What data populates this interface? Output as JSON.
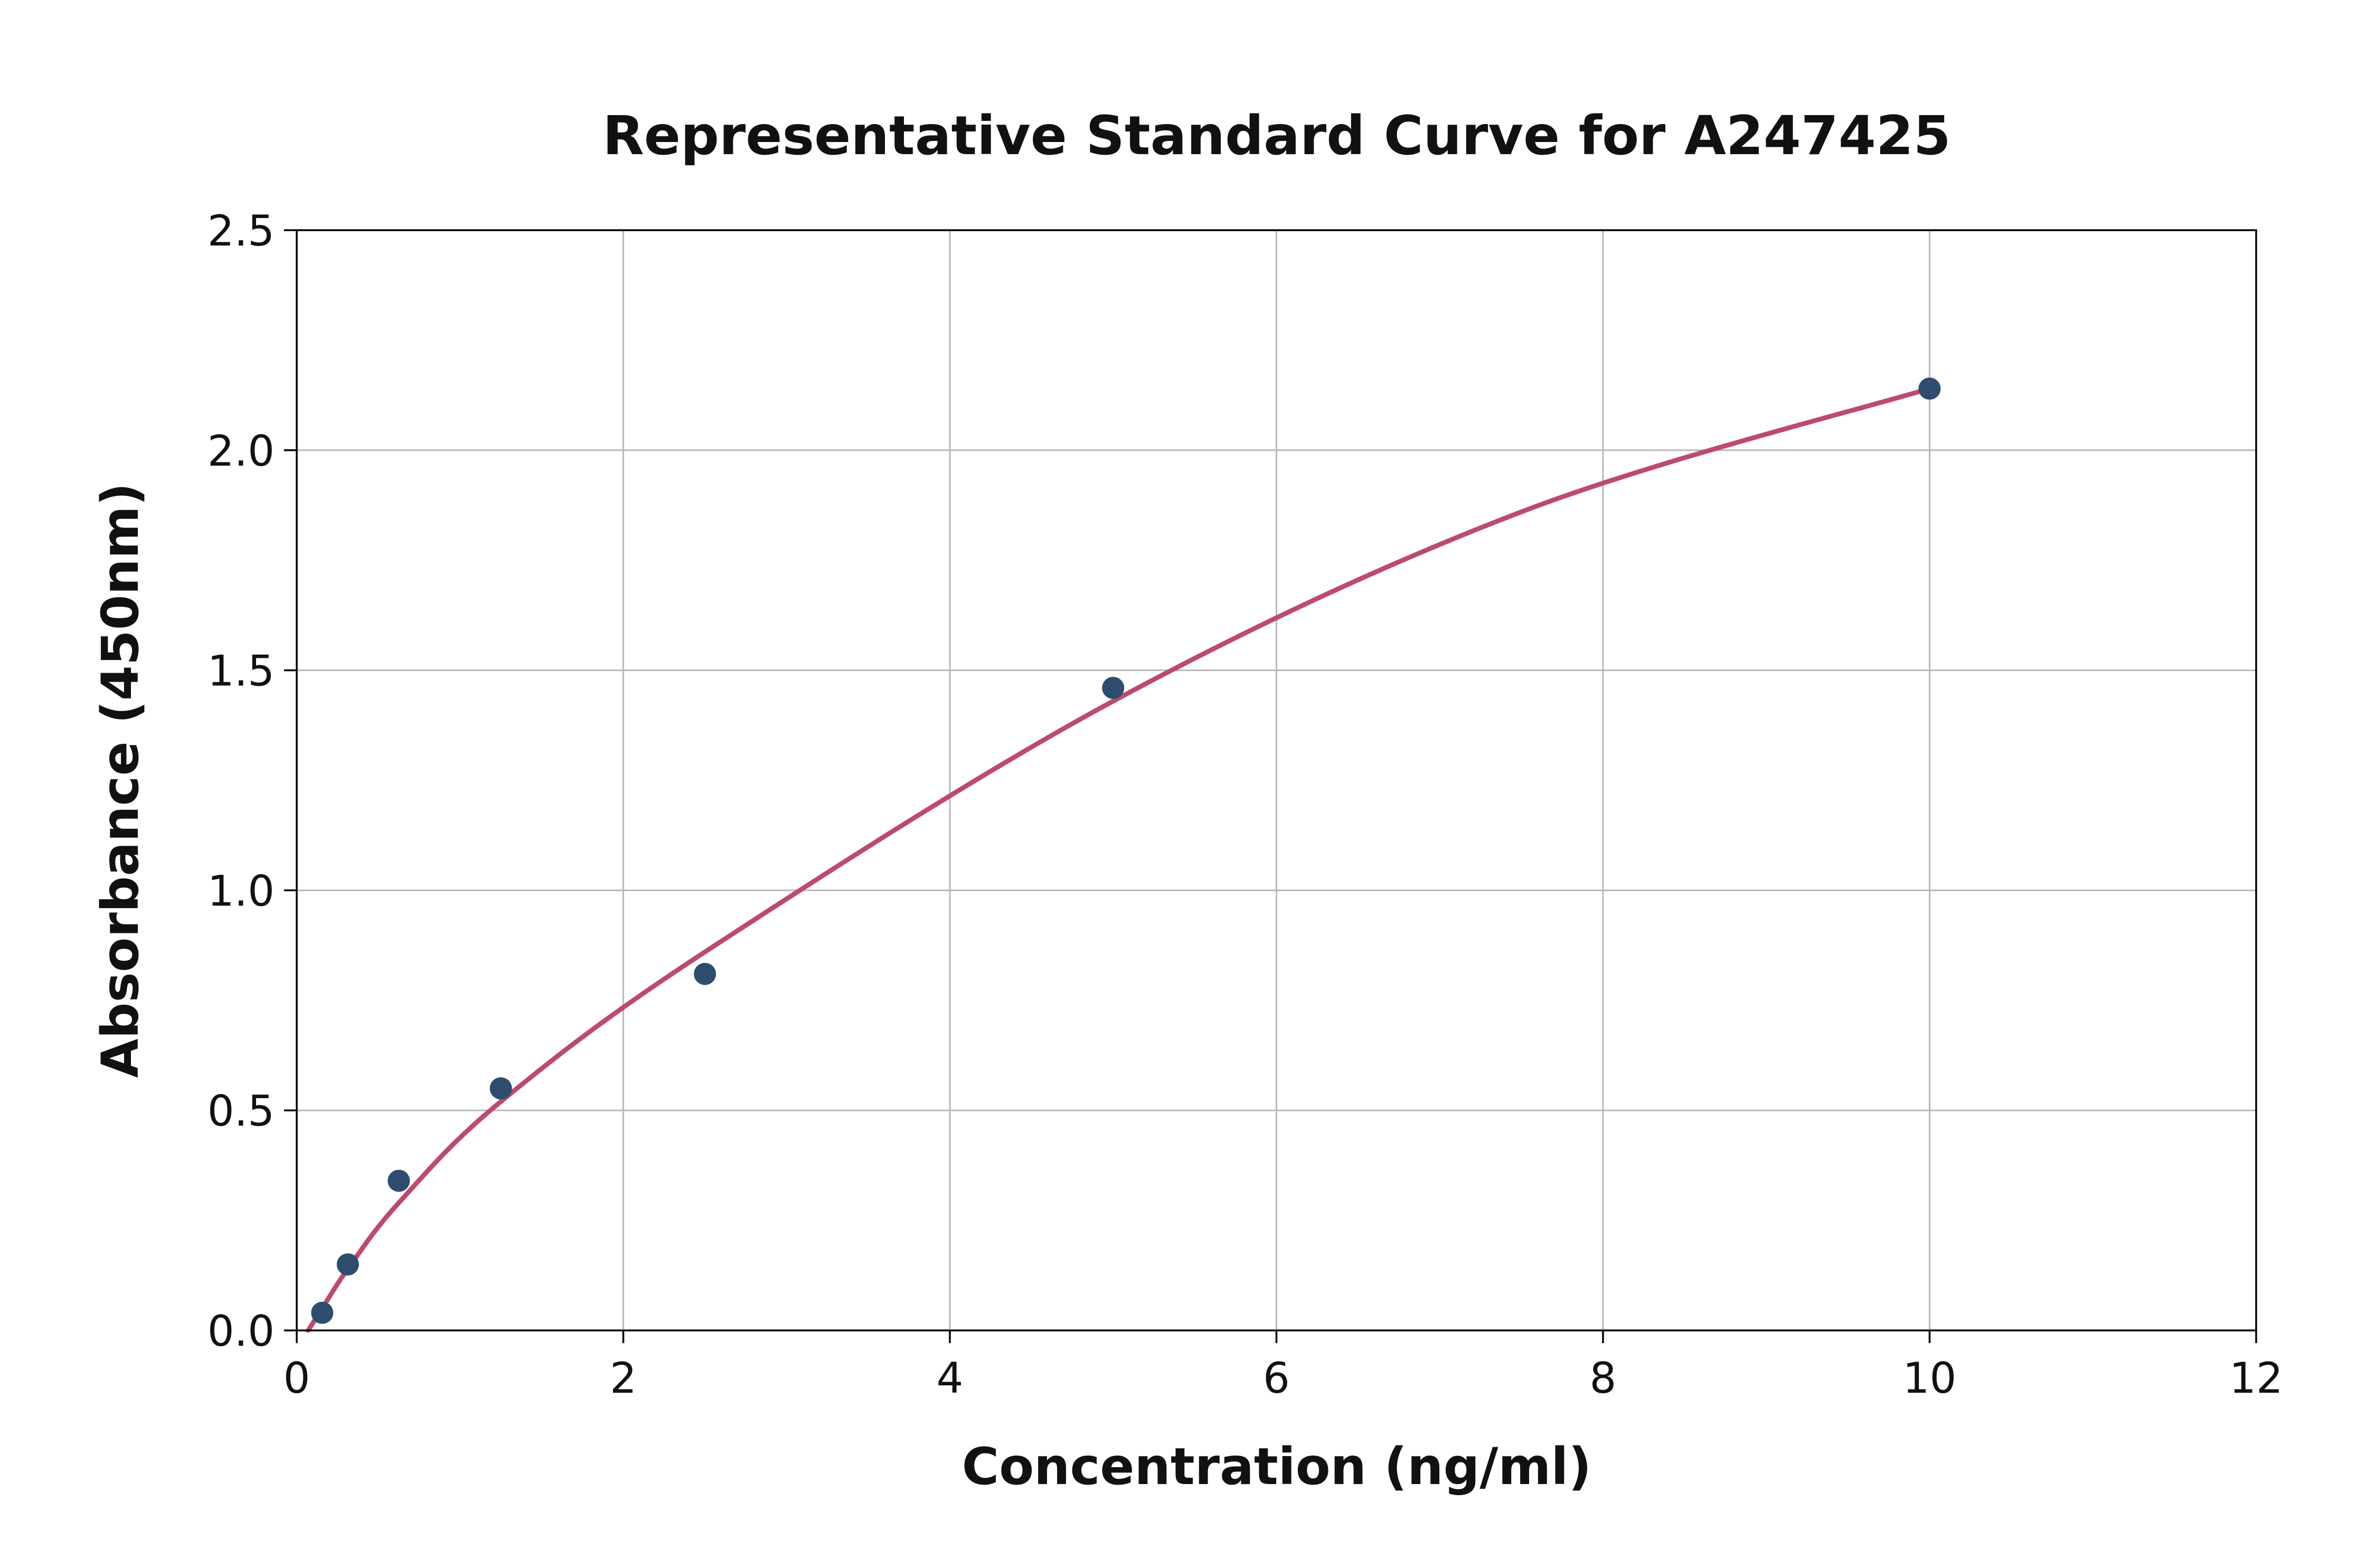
{
  "chart_data": {
    "type": "scatter",
    "title": "Representative Standard Curve for A247425",
    "xlabel": "Concentration (ng/ml)",
    "ylabel": "Absorbance (450nm)",
    "xlim": [
      0,
      12
    ],
    "ylim": [
      0,
      2.5
    ],
    "grid": true,
    "legend": "none",
    "xticks": [
      0,
      2,
      4,
      6,
      8,
      10,
      12
    ],
    "yticks": [
      0,
      0.5,
      1.0,
      1.5,
      2.0,
      2.5
    ],
    "xtick_labels": [
      "0",
      "2",
      "4",
      "6",
      "8",
      "10",
      "12"
    ],
    "ytick_labels": [
      "0.0",
      "0.5",
      "1.0",
      "1.5",
      "2.0",
      "2.5"
    ],
    "points": {
      "x": [
        0.156,
        0.313,
        0.625,
        1.25,
        2.5,
        5,
        10
      ],
      "y": [
        0.04,
        0.15,
        0.34,
        0.55,
        0.81,
        1.46,
        2.14
      ]
    },
    "fit_curve": {
      "x": [
        0.07,
        0.156,
        0.313,
        0.625,
        1.25,
        2.5,
        5,
        7.5,
        10
      ],
      "y": [
        0.0,
        0.05,
        0.14,
        0.29,
        0.52,
        0.86,
        1.43,
        1.86,
        2.14
      ]
    },
    "colors": {
      "point": "#2e4d6e",
      "curve": "#bd4a6f",
      "grid": "#b9b9b9",
      "spine": "#000000",
      "text": "#111111",
      "background": "#ffffff"
    }
  }
}
